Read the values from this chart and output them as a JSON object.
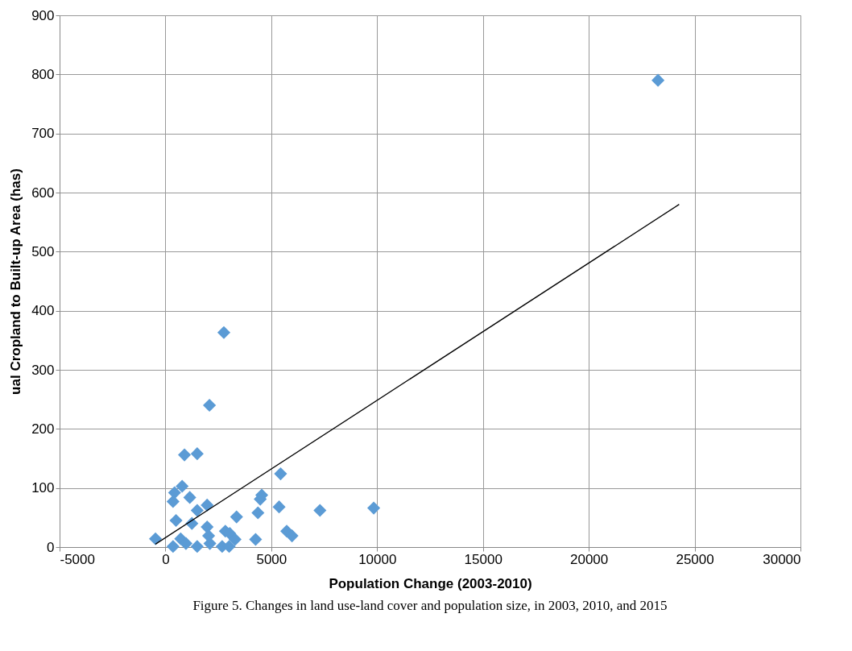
{
  "chart_data": {
    "type": "scatter",
    "xlabel": "Population Change (2003-2010)",
    "ylabel": "ual Cropland to Built-up Area (has)",
    "annotations": [
      "Figure 5. Changes in land use-land cover and population size, in 2003, 2010, and 2015"
    ],
    "xlim": [
      -5000,
      30000
    ],
    "xticks": [
      -5000,
      0,
      5000,
      10000,
      15000,
      20000,
      25000,
      30000
    ],
    "ylim": [
      0,
      900
    ],
    "yticks": [
      0,
      100,
      200,
      300,
      400,
      500,
      600,
      700,
      800,
      900
    ],
    "grid": true,
    "marker": "diamond",
    "series": [
      {
        "color": "#5b9bd5",
        "x": [
          23270,
          2760,
          2080,
          900,
          1500,
          5440,
          -470,
          360,
          430,
          790,
          360,
          1150,
          500,
          1500,
          1970,
          1250,
          1970,
          720,
          970,
          1500,
          2100,
          2040,
          2680,
          2830,
          3040,
          3290,
          3010,
          3360,
          4260,
          4370,
          4480,
          4550,
          5370,
          7300,
          9840,
          5730,
          5980
        ],
        "values": [
          790,
          363,
          240,
          156,
          158,
          124,
          14,
          1,
          92,
          103,
          77,
          84,
          45,
          62,
          71,
          40,
          34,
          14,
          6,
          1,
          6,
          19,
          1,
          27,
          23,
          13,
          1,
          51,
          13,
          58,
          81,
          88,
          68,
          62,
          66,
          27,
          19
        ]
      },
      {
        "type": "line",
        "color": "#000000",
        "x": [
          -470,
          24270
        ],
        "values": [
          5,
          580
        ],
        "marker": "none"
      }
    ]
  }
}
